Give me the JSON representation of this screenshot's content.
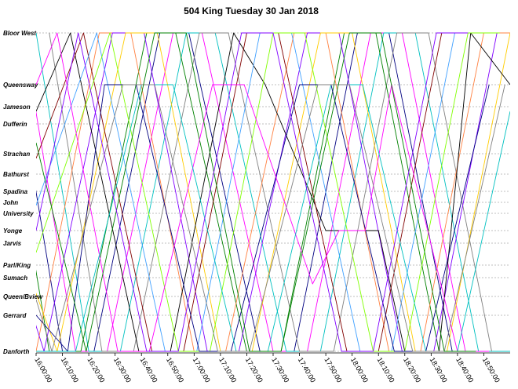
{
  "chart_data": {
    "type": "line",
    "title": "504 King  Tuesday  30 Jan 2018",
    "xlabel": "",
    "ylabel": "",
    "x_ticks": [
      "16:00:00",
      "16:10:00",
      "16:20:00",
      "16:30:00",
      "16:40:00",
      "16:50:00",
      "17:00:00",
      "17:10:00",
      "17:20:00",
      "17:30:00",
      "17:40:00",
      "17:50:00",
      "18:00:00",
      "18:10:00",
      "18:20:00",
      "18:30:00",
      "18:40:00",
      "18:50:00"
    ],
    "xlim": [
      "16:00:00",
      "19:00:00"
    ],
    "y_axis_stops": [
      "Bloor West",
      "Queensway",
      "Jameson",
      "Dufferin",
      "Strachan",
      "Bathurst",
      "Spadina",
      "John",
      "University",
      "Yonge",
      "Jarvis",
      "Parl/King",
      "Sumach",
      "Queen/Bview",
      "Gerrard",
      "Danforth"
    ],
    "stop_distance": [
      0,
      3.3,
      4.7,
      5.8,
      7.7,
      9.0,
      10.1,
      10.8,
      11.5,
      12.6,
      13.4,
      14.8,
      15.6,
      16.8,
      18.0,
      20.3
    ],
    "grid": true,
    "legend": "none",
    "series_colors": [
      "#000080",
      "#ff00ff",
      "#00c0c0",
      "#808080",
      "#008000",
      "#ff8040",
      "#8000ff",
      "#ffcc00",
      "#000000",
      "#800000",
      "#40a0ff",
      "#80ff00"
    ],
    "series": [
      {
        "color": "#000080",
        "x": [
          "15:50:00",
          "16:10:00",
          "16:22:00",
          "16:47:00",
          "16:58:00",
          "17:25:00",
          "17:38:00",
          "18:02:00",
          "18:14:00",
          "18:38:00",
          "18:50:00"
        ],
        "y": [
          0,
          20.3,
          20.3,
          0,
          0,
          20.3,
          20.3,
          0,
          0,
          20.3,
          20.3
        ]
      },
      {
        "color": "#ff00ff",
        "x": [
          "15:55:00",
          "16:15:00",
          "16:27:00",
          "16:52:00",
          "17:03:00",
          "17:30:00",
          "17:43:00",
          "18:07:00",
          "18:19:00",
          "18:43:00",
          "18:55:00"
        ],
        "y": [
          0,
          20.3,
          20.3,
          0,
          0,
          20.3,
          20.3,
          0,
          0,
          20.3,
          20.3
        ]
      },
      {
        "color": "#00c0c0",
        "x": [
          "16:00:00",
          "16:20:00",
          "16:32:00",
          "16:57:00",
          "17:08:00",
          "17:35:00",
          "17:48:00",
          "18:12:00",
          "18:24:00",
          "18:48:00",
          "19:00:00"
        ],
        "y": [
          0,
          20.3,
          20.3,
          0,
          0,
          20.3,
          20.3,
          0,
          0,
          20.3,
          20.3
        ]
      },
      {
        "color": "#808080",
        "x": [
          "16:05:00",
          "16:25:00",
          "16:37:00",
          "17:02:00",
          "17:13:00",
          "17:40:00",
          "17:53:00",
          "18:17:00",
          "18:29:00",
          "18:53:00"
        ],
        "y": [
          0,
          20.3,
          20.3,
          0,
          0,
          20.3,
          20.3,
          0,
          0,
          20.3
        ]
      },
      {
        "color": "#008000",
        "x": [
          "15:45:00",
          "16:05:00",
          "16:17:00",
          "16:42:00",
          "16:53:00",
          "17:20:00",
          "17:33:00",
          "17:57:00",
          "18:09:00",
          "18:33:00",
          "18:45:00"
        ],
        "y": [
          0,
          20.3,
          20.3,
          0,
          0,
          20.3,
          20.3,
          0,
          0,
          20.3,
          20.3
        ]
      },
      {
        "color": "#ff8040",
        "x": [
          "15:58:00",
          "16:00:00",
          "16:24:00",
          "16:36:00",
          "17:00:00",
          "17:12:00",
          "17:38:00",
          "17:50:00",
          "18:14:00",
          "18:26:00",
          "18:50:00",
          "19:00:00"
        ],
        "y": [
          19.0,
          20.3,
          0,
          0,
          20.3,
          20.3,
          0,
          0,
          20.3,
          20.3,
          0,
          0
        ]
      },
      {
        "color": "#8000ff",
        "x": [
          "15:55:00",
          "16:03:00",
          "16:29:00",
          "16:41:00",
          "17:05:00",
          "17:17:00",
          "17:43:00",
          "17:55:00",
          "18:19:00",
          "18:31:00",
          "18:55:00"
        ],
        "y": [
          16.0,
          20.3,
          0,
          0,
          20.3,
          20.3,
          0,
          0,
          20.3,
          20.3,
          0
        ]
      },
      {
        "color": "#ffcc00",
        "x": [
          "15:50:00",
          "16:08:00",
          "16:34:00",
          "16:46:00",
          "17:10:00",
          "17:22:00",
          "17:48:00",
          "18:00:00",
          "18:24:00",
          "18:36:00",
          "19:00:00"
        ],
        "y": [
          12.0,
          20.3,
          0,
          0,
          20.3,
          20.3,
          0,
          0,
          20.3,
          20.3,
          0
        ]
      },
      {
        "color": "#000000",
        "x": [
          "16:00:00",
          "16:13:00",
          "16:39:00",
          "16:51:00",
          "17:15:00",
          "17:27:00",
          "17:50:00",
          "18:05:00",
          "18:10:00",
          "18:20:00",
          "18:33:00",
          "18:45:00",
          "19:00:00"
        ],
        "y": [
          5.0,
          0,
          20.3,
          20.3,
          0,
          3.3,
          12.6,
          12.6,
          12.6,
          20.3,
          20.3,
          0,
          3.3
        ]
      },
      {
        "color": "#800000",
        "x": [
          "16:00:00",
          "16:18:00",
          "16:44:00",
          "16:56:00",
          "17:20:00",
          "17:32:00",
          "17:58:00",
          "18:10:00",
          "18:34:00",
          "18:46:00"
        ],
        "y": [
          8.0,
          0,
          20.3,
          20.3,
          0,
          0,
          20.3,
          20.3,
          0,
          0
        ]
      },
      {
        "color": "#40a0ff",
        "x": [
          "16:00:00",
          "16:23:00",
          "16:49:00",
          "17:01:00",
          "17:25:00",
          "17:37:00",
          "18:03:00",
          "18:15:00",
          "18:39:00",
          "18:51:00"
        ],
        "y": [
          11.0,
          0,
          20.3,
          20.3,
          0,
          0,
          20.3,
          20.3,
          0,
          0
        ]
      },
      {
        "color": "#80ff00",
        "x": [
          "16:00:00",
          "16:28:00",
          "16:54:00",
          "17:06:00",
          "17:30:00",
          "17:42:00",
          "18:08:00",
          "18:20:00",
          "18:44:00",
          "18:56:00"
        ],
        "y": [
          14.0,
          0,
          20.3,
          20.3,
          0,
          0,
          20.3,
          20.3,
          0,
          0
        ]
      },
      {
        "color": "#000080",
        "x": [
          "16:00:00",
          "16:12:00",
          "16:26:00",
          "16:38:00",
          "17:02:00",
          "17:14:00",
          "17:40:00",
          "17:52:00",
          "18:16:00",
          "18:28:00",
          "18:52:00"
        ],
        "y": [
          18.0,
          20.3,
          3.3,
          3.3,
          20.3,
          20.3,
          3.3,
          3.3,
          20.3,
          20.3,
          3.3
        ]
      },
      {
        "color": "#ff00ff",
        "x": [
          "16:00:00",
          "16:08:00",
          "16:31:00",
          "16:43:00",
          "17:07:00",
          "17:19:00",
          "17:45:00",
          "17:55:00",
          "18:05:00",
          "18:15:00",
          "18:40:00",
          "18:52:00"
        ],
        "y": [
          3.3,
          0,
          20.3,
          20.3,
          3.3,
          3.3,
          16.0,
          12.6,
          12.6,
          3.3,
          20.3,
          20.3
        ]
      },
      {
        "color": "#00c0c0",
        "x": [
          "16:00:00",
          "16:15:00",
          "16:40:00",
          "16:52:00",
          "17:16:00",
          "17:28:00",
          "17:52:00",
          "18:04:00",
          "18:28:00",
          "18:40:00",
          "19:00:00"
        ],
        "y": [
          20.3,
          20.3,
          3.3,
          3.3,
          20.3,
          20.3,
          3.3,
          3.3,
          20.3,
          20.3,
          5.0
        ]
      },
      {
        "color": "#808080",
        "x": [
          "16:00:00",
          "16:06:00",
          "16:33:00",
          "16:45:00",
          "17:09:00",
          "17:21:00",
          "17:47:00",
          "17:59:00",
          "18:23:00",
          "18:35:00",
          "18:58:00"
        ],
        "y": [
          17.0,
          20.3,
          3.3,
          3.3,
          20.3,
          20.3,
          3.3,
          3.3,
          20.3,
          20.3,
          3.3
        ]
      },
      {
        "color": "#008000",
        "x": [
          "16:00:00",
          "16:19:00",
          "16:45:00",
          "16:57:00",
          "17:21:00",
          "17:33:00",
          "17:59:00",
          "18:11:00",
          "18:35:00",
          "18:47:00"
        ],
        "y": [
          7.0,
          20.3,
          0,
          0,
          20.3,
          20.3,
          0,
          0,
          20.3,
          20.3
        ]
      },
      {
        "color": "#8000ff",
        "x": [
          "16:00:00",
          "16:16:00",
          "16:42:00",
          "16:54:00",
          "17:18:00",
          "17:30:00",
          "17:56:00",
          "18:08:00",
          "18:32:00",
          "18:44:00"
        ],
        "y": [
          12.6,
          0,
          20.3,
          20.3,
          0,
          0,
          20.3,
          20.3,
          0,
          0
        ]
      }
    ]
  }
}
